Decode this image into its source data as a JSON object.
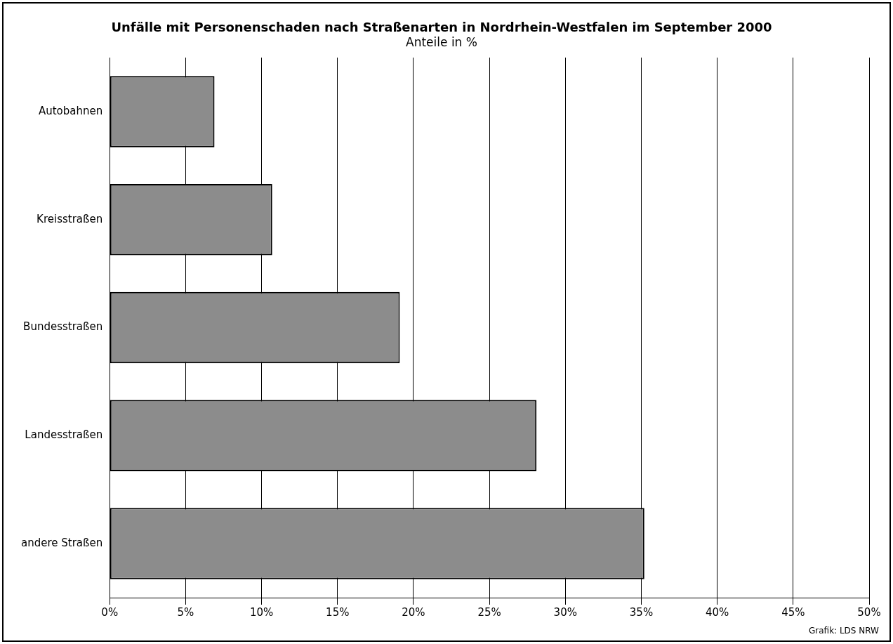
{
  "chart_data": {
    "type": "bar",
    "orientation": "horizontal",
    "title": "Unfälle mit Personenschaden nach Straßenarten in Nordrhein-Westfalen im September 2000",
    "subtitle": "Anteile in %",
    "categories": [
      "Autobahnen",
      "Kreisstraßen",
      "Bundesstraßen",
      "Landesstraßen",
      "andere Straßen"
    ],
    "values": [
      6.9,
      10.7,
      19.1,
      28.1,
      35.2
    ],
    "color": "#8c8c8c",
    "xlim": [
      0,
      50
    ],
    "xticks": [
      {
        "value": 0,
        "label": "0%"
      },
      {
        "value": 5,
        "label": "5%"
      },
      {
        "value": 10,
        "label": "10%"
      },
      {
        "value": 15,
        "label": "15%"
      },
      {
        "value": 20,
        "label": "20%"
      },
      {
        "value": 25,
        "label": "25%"
      },
      {
        "value": 30,
        "label": "30%"
      },
      {
        "value": 35,
        "label": "35%"
      },
      {
        "value": 40,
        "label": "40%"
      },
      {
        "value": 45,
        "label": "45%"
      },
      {
        "value": 50,
        "label": "50%"
      }
    ],
    "grid": "x",
    "legend": false,
    "annotations": [
      "Grafik: LDS NRW"
    ]
  }
}
